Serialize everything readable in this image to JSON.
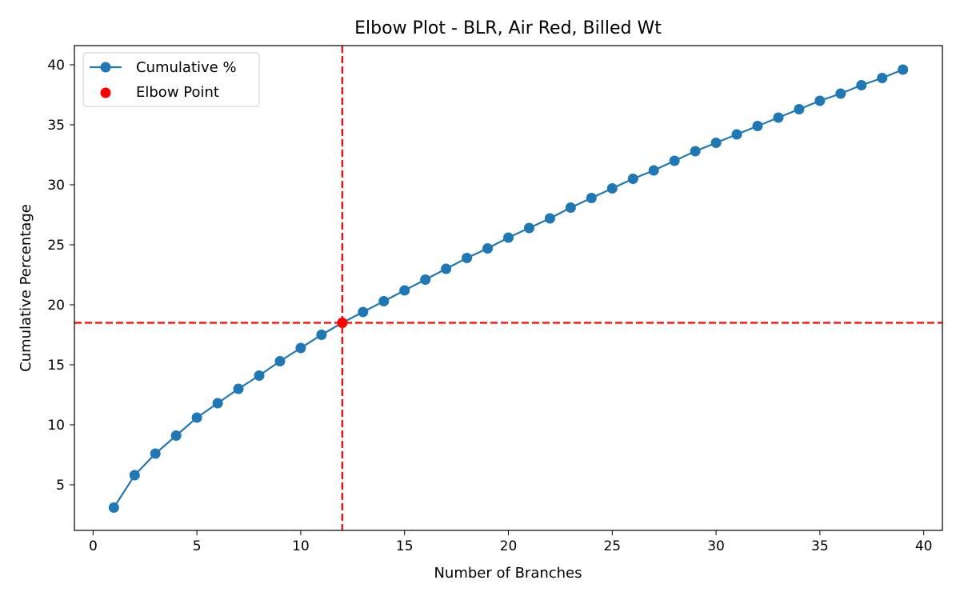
{
  "chart_data": {
    "type": "line",
    "title": "Elbow Plot - BLR, Air Red, Billed Wt",
    "xlabel": "Number of Branches",
    "ylabel": "Cumulative Percentage",
    "xlim": [
      -0.9,
      40.9
    ],
    "ylim": [
      1.2,
      41.6
    ],
    "xticks": [
      0,
      5,
      10,
      15,
      20,
      25,
      30,
      35,
      40
    ],
    "yticks": [
      5,
      10,
      15,
      20,
      25,
      30,
      35,
      40
    ],
    "grid": false,
    "legend_position": "top-left",
    "series": [
      {
        "name": "Cumulative %",
        "color": "#1f77b4",
        "marker": "circle",
        "x": [
          1,
          2,
          3,
          4,
          5,
          6,
          7,
          8,
          9,
          10,
          11,
          12,
          13,
          14,
          15,
          16,
          17,
          18,
          19,
          20,
          21,
          22,
          23,
          24,
          25,
          26,
          27,
          28,
          29,
          30,
          31,
          32,
          33,
          34,
          35,
          36,
          37,
          38,
          39
        ],
        "y": [
          3.1,
          5.8,
          7.6,
          9.1,
          10.6,
          11.8,
          13.0,
          14.1,
          15.3,
          16.4,
          17.5,
          18.5,
          19.4,
          20.3,
          21.2,
          22.1,
          23.0,
          23.9,
          24.7,
          25.6,
          26.4,
          27.2,
          28.1,
          28.9,
          29.7,
          30.5,
          31.2,
          32.0,
          32.8,
          33.5,
          34.2,
          34.9,
          35.6,
          36.3,
          37.0,
          37.6,
          38.3,
          38.9,
          39.6
        ]
      }
    ],
    "elbow_point": {
      "name": "Elbow Point",
      "color": "#ff0000",
      "x": 12,
      "y": 18.5
    },
    "reference_lines": {
      "color": "#ff0000",
      "style": "dashed",
      "vertical_x": 12,
      "horizontal_y": 18.5
    }
  }
}
